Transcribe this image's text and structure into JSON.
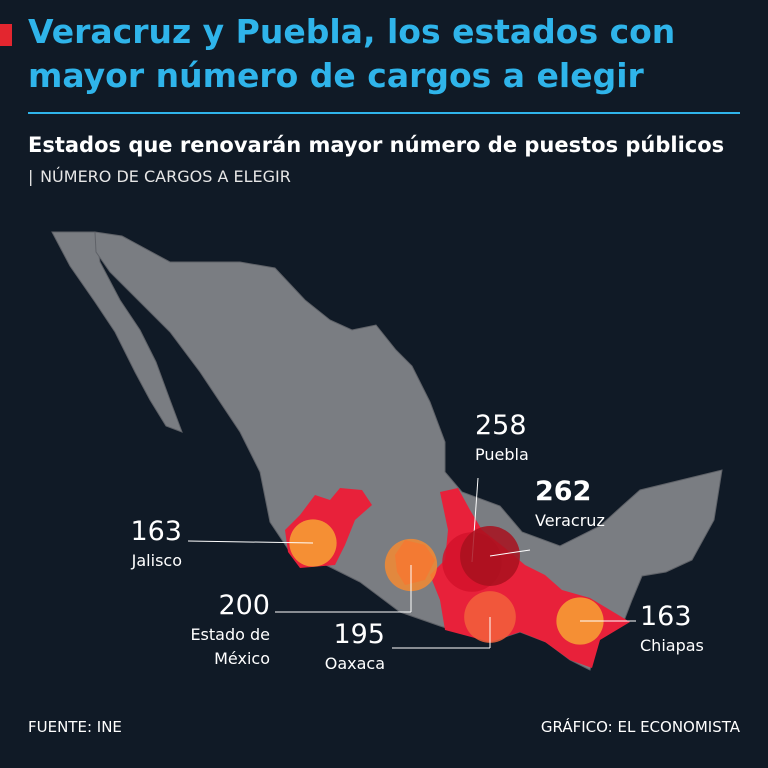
{
  "chart_data": {
    "type": "bubble-map",
    "title": "Veracruz y Puebla, los estados con mayor número de cargos a elegir",
    "subtitle": "Estados que renovarán mayor número de puestos públicos",
    "unit_label": "NÚMERO DE CARGOS A ELEGIR",
    "categories": [
      "Jalisco",
      "Estado de México",
      "Puebla",
      "Veracruz",
      "Oaxaca",
      "Chiapas"
    ],
    "values": [
      163,
      200,
      258,
      262,
      195,
      163
    ],
    "colors": [
      "#f7a234",
      "#f58a33",
      "#d4122b",
      "#a8101f",
      "#f2603c",
      "#f7a234"
    ],
    "source": "FUENTE: INE",
    "credit": "GRÁFICO: EL ECONOMISTA"
  }
}
